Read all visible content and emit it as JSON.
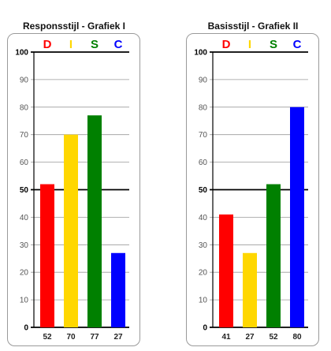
{
  "chart_data": [
    {
      "type": "bar",
      "title": "Responsstijl - Grafiek I",
      "categories": [
        "D",
        "I",
        "S",
        "C"
      ],
      "values": [
        52,
        70,
        77,
        27
      ],
      "value_labels": [
        "52",
        "70",
        "77",
        "27"
      ],
      "ylim": [
        0,
        100
      ],
      "yticks": [
        0,
        10,
        20,
        30,
        40,
        50,
        60,
        70,
        80,
        90,
        100
      ],
      "emphasized_gridlines": [
        0,
        50,
        100
      ],
      "colors": [
        "#ff0000",
        "#ffd700",
        "#008000",
        "#0000ff"
      ],
      "grid": true
    },
    {
      "type": "bar",
      "title": "Basisstijl - Grafiek II",
      "categories": [
        "D",
        "I",
        "S",
        "C"
      ],
      "values": [
        41,
        27,
        52,
        80
      ],
      "value_labels": [
        "41",
        "27",
        "52",
        "80"
      ],
      "ylim": [
        0,
        100
      ],
      "yticks": [
        0,
        10,
        20,
        30,
        40,
        50,
        60,
        70,
        80,
        90,
        100
      ],
      "emphasized_gridlines": [
        0,
        50,
        100
      ],
      "colors": [
        "#ff0000",
        "#ffd700",
        "#008000",
        "#0000ff"
      ],
      "grid": true
    }
  ]
}
